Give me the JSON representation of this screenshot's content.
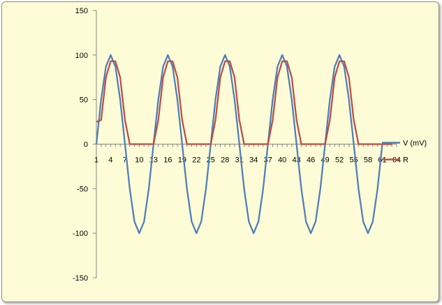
{
  "chart_data": {
    "type": "line",
    "title": "",
    "xlabel": "",
    "ylabel": "",
    "ylim": [
      -150,
      150
    ],
    "yticks": [
      150,
      100,
      50,
      0,
      -50,
      -100,
      -150
    ],
    "xlim": [
      1,
      64
    ],
    "xticks": [
      1,
      4,
      7,
      10,
      13,
      16,
      19,
      22,
      25,
      28,
      31,
      34,
      37,
      40,
      43,
      46,
      49,
      52,
      55,
      58,
      61,
      64
    ],
    "grid": false,
    "legend_position": "right",
    "colors": {
      "v": "#4a7ebb",
      "r": "#be4b48",
      "background": "#fefcd6"
    },
    "series": [
      {
        "name": "V (mV)",
        "x": [
          1,
          2,
          3,
          4,
          5,
          6,
          7,
          8,
          9,
          10,
          11,
          12,
          13,
          14,
          15,
          16,
          17,
          18,
          19,
          20,
          21,
          22,
          23,
          24,
          25,
          26,
          27,
          28,
          29,
          30,
          31,
          32,
          33,
          34,
          35,
          36,
          37,
          38,
          39,
          40,
          41,
          42,
          43,
          44,
          45,
          46,
          47,
          48,
          49,
          50,
          51,
          52,
          53,
          54,
          55,
          56,
          57,
          58,
          59,
          60,
          61,
          62,
          63
        ],
        "values": [
          0,
          50,
          87,
          100,
          87,
          50,
          0,
          -50,
          -87,
          -100,
          -87,
          -50,
          0,
          50,
          87,
          100,
          87,
          50,
          0,
          -50,
          -87,
          -100,
          -87,
          -50,
          0,
          50,
          87,
          100,
          87,
          50,
          0,
          -50,
          -87,
          -100,
          -87,
          -50,
          0,
          50,
          87,
          100,
          87,
          50,
          0,
          -50,
          -87,
          -100,
          -87,
          -50,
          0,
          50,
          87,
          100,
          87,
          50,
          0,
          -50,
          -87,
          -100,
          -87,
          -50,
          0,
          0,
          0
        ]
      },
      {
        "name": "R",
        "x": [
          1,
          2,
          3,
          4,
          5,
          6,
          7,
          8,
          9,
          10,
          11,
          12,
          13,
          14,
          15,
          16,
          17,
          18,
          19,
          20,
          21,
          22,
          23,
          24,
          25,
          26,
          27,
          28,
          29,
          30,
          31,
          32,
          33,
          34,
          35,
          36,
          37,
          38,
          39,
          40,
          41,
          42,
          43,
          44,
          45,
          46,
          47,
          48,
          49,
          50,
          51,
          52,
          53,
          54,
          55,
          56,
          57,
          58,
          59,
          60,
          61,
          62,
          63
        ],
        "values": [
          25,
          27,
          75,
          93,
          93,
          75,
          27,
          0,
          0,
          0,
          0,
          0,
          0,
          27,
          75,
          93,
          93,
          75,
          27,
          0,
          0,
          0,
          0,
          0,
          0,
          27,
          75,
          93,
          93,
          75,
          27,
          0,
          0,
          0,
          0,
          0,
          0,
          27,
          75,
          93,
          93,
          75,
          27,
          0,
          0,
          0,
          0,
          0,
          0,
          27,
          75,
          93,
          93,
          75,
          27,
          0,
          0,
          0,
          0,
          0,
          0,
          0,
          0
        ]
      }
    ]
  }
}
